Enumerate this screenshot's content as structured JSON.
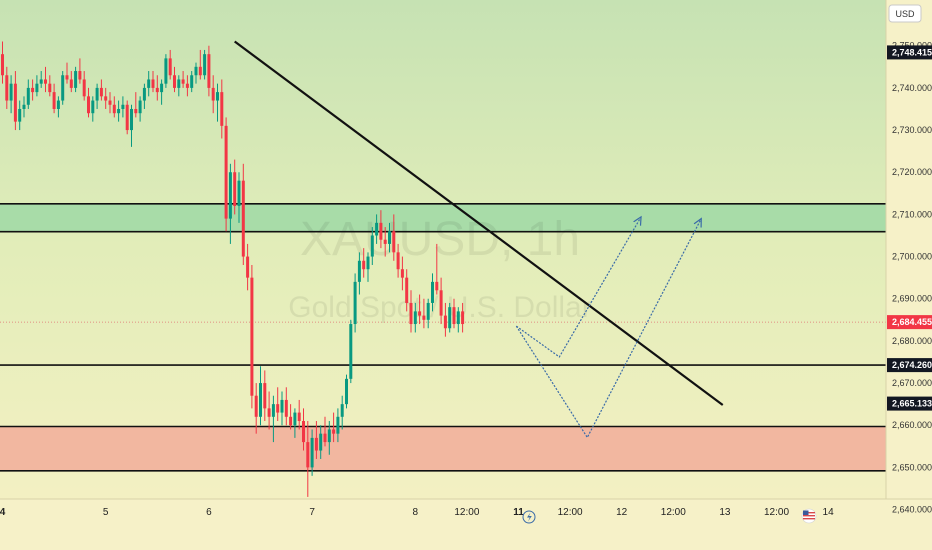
{
  "chart_data": {
    "type": "candlestick",
    "symbol": "XAUUSD, 1h",
    "instrument_name": "Gold Spot / U.S. Dollar",
    "currency": "USD",
    "ylim": [
      2638,
      2758
    ],
    "y_ticks": [
      2640,
      2650,
      2660,
      2670,
      2680,
      2690,
      2700,
      2710,
      2720,
      2730,
      2740,
      2750
    ],
    "y_tick_labels": [
      "2,640.000",
      "2,650.000",
      "2,660.000",
      "2,670.000",
      "2,680.000",
      "2,690.000",
      "2,700.000",
      "2,710.000",
      "2,720.000",
      "2,730.000",
      "2,740.000",
      "2,750.000"
    ],
    "x_labels": [
      {
        "text": "4",
        "bar": 0,
        "bold": true
      },
      {
        "text": "5",
        "bar": 24,
        "bold": false
      },
      {
        "text": "6",
        "bar": 48,
        "bold": false
      },
      {
        "text": "7",
        "bar": 72,
        "bold": false
      },
      {
        "text": "8",
        "bar": 96,
        "bold": false
      },
      {
        "text": "12:00",
        "bar": 108,
        "bold": false
      },
      {
        "text": "11",
        "bar": 120,
        "bold": true
      },
      {
        "text": "12:00",
        "bar": 132,
        "bold": false
      },
      {
        "text": "12",
        "bar": 144,
        "bold": false
      },
      {
        "text": "12:00",
        "bar": 156,
        "bold": false
      },
      {
        "text": "13",
        "bar": 168,
        "bold": false
      },
      {
        "text": "12:00",
        "bar": 180,
        "bold": false
      },
      {
        "text": "14",
        "bar": 192,
        "bold": false
      }
    ],
    "price_tags": [
      {
        "value": 2748.415,
        "label": "2,748.415",
        "kind": "dark"
      },
      {
        "value": 2684.455,
        "label": "2,684.455",
        "kind": "red"
      },
      {
        "value": 2674.26,
        "label": "2,674.260",
        "kind": "dark"
      },
      {
        "value": 2665.133,
        "label": "2,665.133",
        "kind": "dark"
      }
    ],
    "last_price": 2684.455,
    "zones": [
      {
        "name": "resistance",
        "from": 2705.9,
        "to": 2712.5,
        "color": "#a8dca8"
      },
      {
        "name": "support",
        "from": 2649.2,
        "to": 2659.7,
        "color": "#f2b7a0"
      }
    ],
    "horizontal_lines": [
      2712.5,
      2705.9,
      2674.26,
      2659.7,
      2649.2
    ],
    "trendline": {
      "from": {
        "bar": 54,
        "price": 2751
      },
      "to": {
        "bar": 167.5,
        "price": 2664.8
      }
    },
    "projections": [
      {
        "points": [
          {
            "bar": 119.5,
            "price": 2683.5
          },
          {
            "bar": 129.5,
            "price": 2676.2
          },
          {
            "bar": 148.5,
            "price": 2709.4
          }
        ]
      },
      {
        "points": [
          {
            "bar": 119.5,
            "price": 2683.5
          },
          {
            "bar": 136,
            "price": 2657.1
          },
          {
            "bar": 162.5,
            "price": 2709.0
          }
        ]
      }
    ],
    "candles": [
      [
        2748,
        2751,
        2741,
        2743
      ],
      [
        2743,
        2745,
        2735,
        2737
      ],
      [
        2737,
        2743,
        2734,
        2741
      ],
      [
        2741,
        2744,
        2730,
        2732
      ],
      [
        2732,
        2737,
        2730,
        2735
      ],
      [
        2735,
        2738,
        2733,
        2736
      ],
      [
        2736,
        2742,
        2735,
        2740
      ],
      [
        2740,
        2742,
        2737,
        2739
      ],
      [
        2739,
        2743,
        2738,
        2741
      ],
      [
        2741,
        2744,
        2740,
        2742
      ],
      [
        2742,
        2745,
        2739,
        2741
      ],
      [
        2741,
        2743,
        2738,
        2739
      ],
      [
        2739,
        2741,
        2734,
        2735
      ],
      [
        2735,
        2738,
        2733,
        2737
      ],
      [
        2737,
        2744,
        2736,
        2743
      ],
      [
        2743,
        2746,
        2741,
        2742
      ],
      [
        2742,
        2744,
        2739,
        2740
      ],
      [
        2740,
        2745,
        2739,
        2744
      ],
      [
        2744,
        2747,
        2741,
        2742
      ],
      [
        2742,
        2744,
        2737,
        2738
      ],
      [
        2738,
        2740,
        2733,
        2734
      ],
      [
        2734,
        2738,
        2732,
        2737
      ],
      [
        2737,
        2741,
        2735,
        2740
      ],
      [
        2740,
        2742,
        2737,
        2738
      ],
      [
        2738,
        2740,
        2735,
        2737
      ],
      [
        2737,
        2739,
        2734,
        2736
      ],
      [
        2736,
        2738,
        2733,
        2734
      ],
      [
        2734,
        2737,
        2732,
        2735
      ],
      [
        2735,
        2738,
        2733,
        2736
      ],
      [
        2736,
        2737,
        2729,
        2730
      ],
      [
        2730,
        2736,
        2726,
        2735
      ],
      [
        2735,
        2739,
        2733,
        2734
      ],
      [
        2734,
        2738,
        2732,
        2737
      ],
      [
        2737,
        2741,
        2735,
        2740
      ],
      [
        2740,
        2744,
        2738,
        2742
      ],
      [
        2742,
        2744,
        2739,
        2740
      ],
      [
        2740,
        2743,
        2737,
        2739
      ],
      [
        2739,
        2742,
        2736,
        2741
      ],
      [
        2741,
        2748,
        2740,
        2747
      ],
      [
        2747,
        2749,
        2742,
        2743
      ],
      [
        2743,
        2745,
        2739,
        2740
      ],
      [
        2740,
        2743,
        2738,
        2742
      ],
      [
        2742,
        2744,
        2740,
        2741
      ],
      [
        2741,
        2743,
        2738,
        2740
      ],
      [
        2740,
        2744,
        2739,
        2743
      ],
      [
        2743,
        2746,
        2741,
        2745
      ],
      [
        2745,
        2749,
        2742,
        2743
      ],
      [
        2743,
        2749,
        2742,
        2748
      ],
      [
        2748,
        2750,
        2738,
        2740
      ],
      [
        2740,
        2743,
        2734,
        2737
      ],
      [
        2737,
        2741,
        2732,
        2739
      ],
      [
        2739,
        2742,
        2728,
        2731
      ],
      [
        2731,
        2733,
        2706,
        2709
      ],
      [
        2709,
        2722,
        2703,
        2720
      ],
      [
        2720,
        2723,
        2710,
        2712
      ],
      [
        2712,
        2720,
        2708,
        2718
      ],
      [
        2718,
        2722,
        2698,
        2700
      ],
      [
        2700,
        2703,
        2692,
        2695
      ],
      [
        2695,
        2698,
        2664,
        2667
      ],
      [
        2667,
        2670,
        2658,
        2662
      ],
      [
        2662,
        2674,
        2660,
        2670
      ],
      [
        2670,
        2673,
        2661,
        2664
      ],
      [
        2664,
        2668,
        2659,
        2662
      ],
      [
        2662,
        2667,
        2656,
        2665
      ],
      [
        2665,
        2669,
        2661,
        2663
      ],
      [
        2663,
        2668,
        2660,
        2666
      ],
      [
        2666,
        2669,
        2660,
        2662
      ],
      [
        2662,
        2665,
        2659,
        2660
      ],
      [
        2660,
        2664,
        2657,
        2663
      ],
      [
        2663,
        2666,
        2659,
        2661
      ],
      [
        2661,
        2664,
        2654,
        2656
      ],
      [
        2656,
        2661,
        2643,
        2650
      ],
      [
        2650,
        2659,
        2648,
        2657
      ],
      [
        2657,
        2661,
        2652,
        2654
      ],
      [
        2654,
        2660,
        2652,
        2658
      ],
      [
        2658,
        2662,
        2655,
        2656
      ],
      [
        2656,
        2661,
        2653,
        2659
      ],
      [
        2659,
        2663,
        2656,
        2658
      ],
      [
        2658,
        2664,
        2656,
        2662
      ],
      [
        2662,
        2667,
        2659,
        2665
      ],
      [
        2665,
        2672,
        2664,
        2671
      ],
      [
        2671,
        2685,
        2670,
        2684
      ],
      [
        2684,
        2696,
        2682,
        2694
      ],
      [
        2694,
        2701,
        2691,
        2699
      ],
      [
        2699,
        2702,
        2695,
        2697
      ],
      [
        2697,
        2701,
        2694,
        2700
      ],
      [
        2700,
        2707,
        2698,
        2705
      ],
      [
        2705,
        2710,
        2703,
        2708
      ],
      [
        2708,
        2711,
        2702,
        2704
      ],
      [
        2704,
        2707,
        2700,
        2703
      ],
      [
        2703,
        2708,
        2701,
        2706
      ],
      [
        2706,
        2710,
        2699,
        2701
      ],
      [
        2701,
        2703,
        2695,
        2697
      ],
      [
        2697,
        2700,
        2692,
        2695
      ],
      [
        2695,
        2697,
        2687,
        2689
      ],
      [
        2689,
        2692,
        2682,
        2684
      ],
      [
        2684,
        2689,
        2682,
        2687
      ],
      [
        2687,
        2691,
        2684,
        2686
      ],
      [
        2686,
        2690,
        2683,
        2685
      ],
      [
        2685,
        2690,
        2683,
        2689
      ],
      [
        2689,
        2696,
        2687,
        2694
      ],
      [
        2694,
        2703,
        2691,
        2692
      ],
      [
        2692,
        2695,
        2684,
        2686
      ],
      [
        2686,
        2689,
        2681,
        2683
      ],
      [
        2683,
        2689,
        2682,
        2688
      ],
      [
        2688,
        2690,
        2683,
        2684
      ],
      [
        2684,
        2688,
        2682,
        2687
      ],
      [
        2687,
        2689,
        2682,
        2684
      ]
    ]
  }
}
